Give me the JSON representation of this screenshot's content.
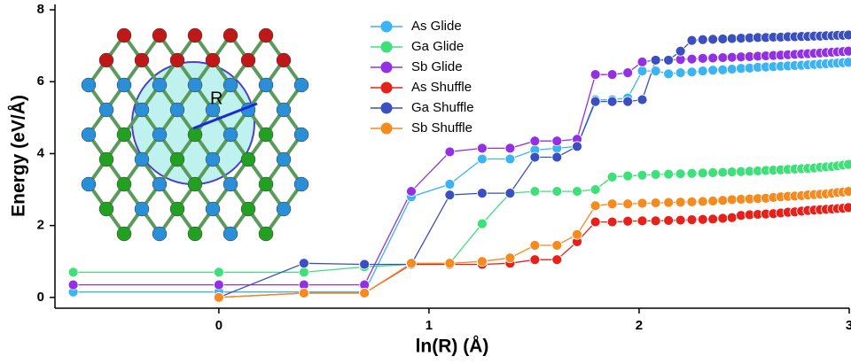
{
  "chart_data": {
    "type": "line",
    "xlabel": "ln(R) (Å)",
    "ylabel": "Energy (eV/Å)",
    "annotations": [
      "R"
    ],
    "x": [
      -0.693,
      0,
      0.405,
      0.693,
      0.916,
      1.099,
      1.253,
      1.386,
      1.504,
      1.609,
      1.705,
      1.792,
      1.872,
      1.946,
      2.015,
      2.079,
      2.14,
      2.197,
      2.251,
      2.303,
      2.351,
      2.398,
      2.442,
      2.485,
      2.526,
      2.565,
      2.603,
      2.639,
      2.674,
      2.708,
      2.741,
      2.773,
      2.803,
      2.833,
      2.862,
      2.89,
      2.918,
      2.944,
      2.97,
      2.996
    ],
    "xlim": [
      -0.78,
      3.0
    ],
    "xticks": [
      0,
      1,
      2,
      3
    ],
    "ylim": [
      -0.3,
      8.15
    ],
    "yticks": [
      0,
      2,
      4,
      6,
      8
    ],
    "legend": "top-center",
    "series": [
      {
        "name": "As Glide",
        "color": "#3ab4f2",
        "values": [
          0.15,
          0.15,
          0.15,
          0.15,
          2.8,
          3.15,
          3.85,
          3.85,
          4.1,
          4.15,
          4.2,
          5.5,
          5.5,
          5.55,
          6.3,
          6.3,
          6.22,
          6.25,
          6.27,
          6.3,
          6.32,
          6.33,
          6.35,
          6.37,
          6.38,
          6.4,
          6.41,
          6.42,
          6.43,
          6.44,
          6.45,
          6.46,
          6.47,
          6.48,
          6.49,
          6.5,
          6.51,
          6.52,
          6.53,
          6.54
        ]
      },
      {
        "name": "Ga Glide",
        "color": "#3ee07a",
        "values": [
          0.7,
          0.7,
          0.7,
          0.85,
          0.92,
          0.95,
          2.05,
          2.9,
          2.95,
          2.95,
          2.95,
          3.0,
          3.35,
          3.38,
          3.4,
          3.42,
          3.43,
          3.44,
          3.45,
          3.46,
          3.47,
          3.48,
          3.49,
          3.5,
          3.51,
          3.52,
          3.53,
          3.54,
          3.55,
          3.56,
          3.57,
          3.58,
          3.59,
          3.6,
          3.62,
          3.63,
          3.64,
          3.66,
          3.68,
          3.7
        ]
      },
      {
        "name": "Sb Glide",
        "color": "#9330e6",
        "values": [
          0.35,
          0.35,
          0.35,
          0.35,
          2.95,
          4.05,
          4.15,
          4.15,
          4.35,
          4.35,
          4.4,
          6.2,
          6.2,
          6.25,
          6.55,
          6.6,
          6.6,
          6.62,
          6.63,
          6.65,
          6.66,
          6.67,
          6.68,
          6.69,
          6.7,
          6.71,
          6.72,
          6.73,
          6.74,
          6.75,
          6.76,
          6.77,
          6.78,
          6.79,
          6.8,
          6.81,
          6.82,
          6.83,
          6.84,
          6.85
        ]
      },
      {
        "name": "As Shuffle",
        "color": "#e8201a",
        "values": [
          null,
          0,
          0.12,
          0.12,
          0.92,
          0.92,
          0.92,
          0.95,
          1.05,
          1.05,
          1.55,
          2.1,
          2.1,
          2.12,
          2.13,
          2.13,
          2.14,
          2.15,
          2.16,
          2.17,
          2.18,
          2.2,
          2.22,
          2.28,
          2.3,
          2.31,
          2.32,
          2.33,
          2.35,
          2.37,
          2.38,
          2.4,
          2.42,
          2.43,
          2.44,
          2.45,
          2.46,
          2.47,
          2.48,
          2.5
        ]
      },
      {
        "name": "Ga Shuffle",
        "color": "#3a4fc0",
        "values": [
          null,
          0,
          0.95,
          0.92,
          0.92,
          2.85,
          2.9,
          2.9,
          3.9,
          3.9,
          4.2,
          5.45,
          5.45,
          5.45,
          5.5,
          6.6,
          6.6,
          6.85,
          7.15,
          7.17,
          7.18,
          7.19,
          7.2,
          7.21,
          7.22,
          7.23,
          7.23,
          7.24,
          7.24,
          7.25,
          7.25,
          7.26,
          7.26,
          7.27,
          7.27,
          7.28,
          7.28,
          7.29,
          7.29,
          7.3
        ]
      },
      {
        "name": "Sb Shuffle",
        "color": "#f58a1f",
        "values": [
          null,
          0,
          0.12,
          0.12,
          0.95,
          0.95,
          1.0,
          1.1,
          1.45,
          1.45,
          1.75,
          2.55,
          2.6,
          2.6,
          2.62,
          2.63,
          2.64,
          2.65,
          2.66,
          2.67,
          2.68,
          2.7,
          2.72,
          2.73,
          2.74,
          2.75,
          2.76,
          2.78,
          2.8,
          2.81,
          2.82,
          2.83,
          2.85,
          2.86,
          2.87,
          2.88,
          2.9,
          2.92,
          2.93,
          2.95
        ]
      }
    ]
  }
}
